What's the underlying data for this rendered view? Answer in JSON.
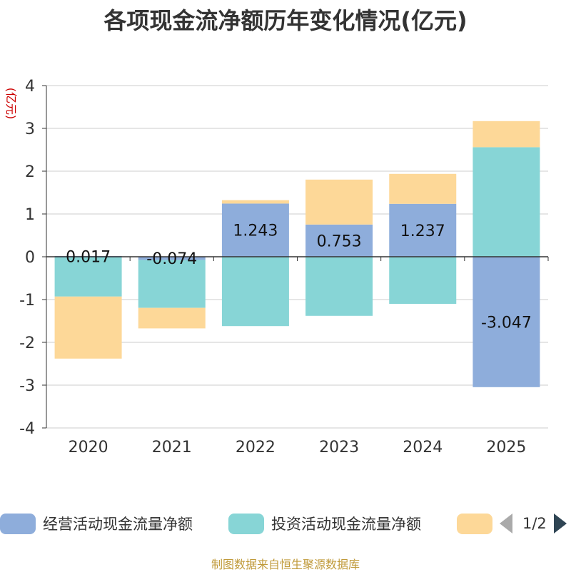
{
  "title": "各项现金流净额历年变化情况(亿元)",
  "source": "制图数据来自恒生聚源数据库",
  "legend": {
    "items": [
      {
        "label": "经营活动现金流量净额",
        "color": "#8eaddb"
      },
      {
        "label": "投资活动现金流量净额",
        "color": "#87d5d6"
      },
      {
        "label": "",
        "color": "#fdd898"
      }
    ],
    "page": "1/2"
  },
  "chart_data": {
    "type": "bar",
    "stacked": true,
    "categories": [
      "2020",
      "2021",
      "2022",
      "2023",
      "2024",
      "2025"
    ],
    "ylabel": "(亿元)",
    "ylim": [
      -4,
      4
    ],
    "yticks": [
      4,
      3,
      2,
      1,
      0,
      -1,
      -2,
      -3,
      -4
    ],
    "series": [
      {
        "name": "经营活动现金流量净额",
        "color": "#8eaddb",
        "values": [
          0.017,
          -0.074,
          1.243,
          0.753,
          1.237,
          -3.047
        ],
        "labels": [
          "0.017",
          "-0.074",
          "1.243",
          "0.753",
          "1.237",
          "-3.047"
        ]
      },
      {
        "name": "投资活动现金流量净额",
        "color": "#87d5d6",
        "values": [
          -0.93,
          -1.12,
          -1.62,
          -1.38,
          -1.1,
          2.56
        ]
      },
      {
        "name": "",
        "color": "#fdd898",
        "values": [
          -1.45,
          -0.48,
          0.08,
          1.05,
          0.7,
          0.61
        ]
      }
    ]
  }
}
